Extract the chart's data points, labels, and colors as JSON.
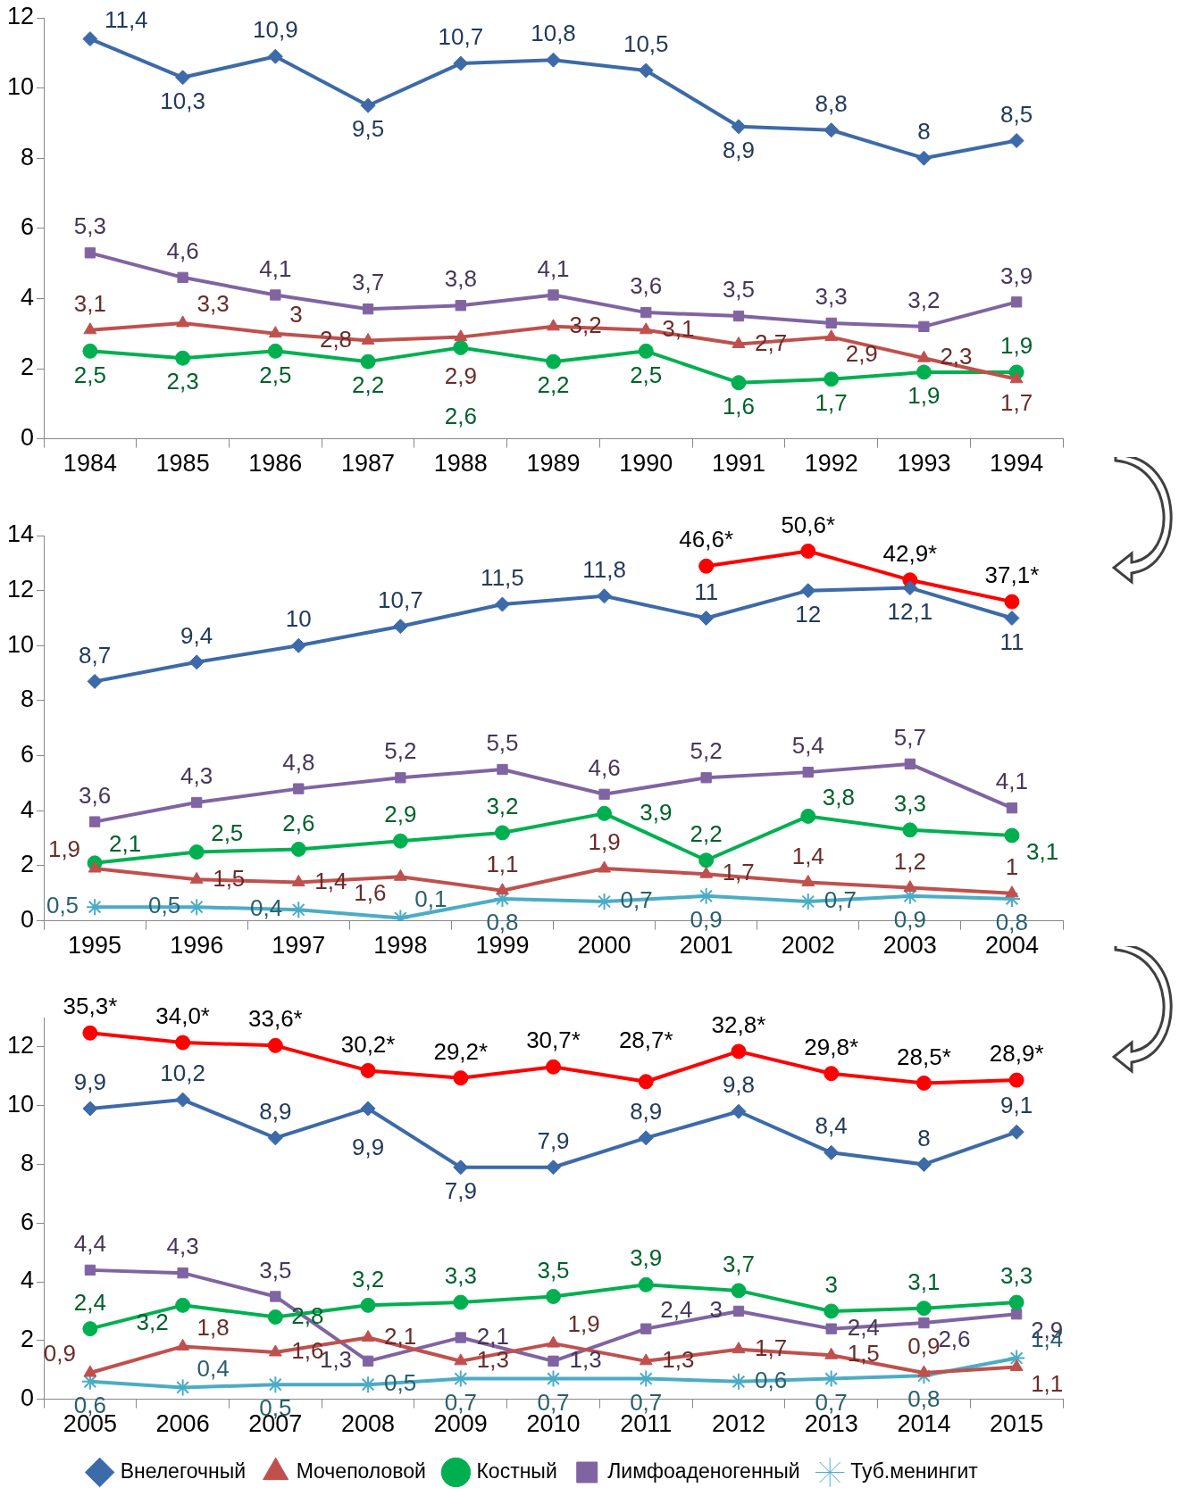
{
  "chart_data": [
    {
      "type": "line",
      "categories": [
        "1984",
        "1985",
        "1986",
        "1987",
        "1988",
        "1989",
        "1990",
        "1991",
        "1992",
        "1993",
        "1994"
      ],
      "ylim": [
        0,
        12
      ],
      "yticks": [
        0,
        2,
        4,
        6,
        8,
        10,
        12
      ],
      "grid": false,
      "series": [
        {
          "color": "#3d6aa8",
          "marker": "diamond",
          "values": [
            11.4,
            10.3,
            10.9,
            9.5,
            10.7,
            10.8,
            10.5,
            8.9,
            8.8,
            8,
            8.5
          ],
          "value_labels": [
            "11,4",
            "10,3",
            "10,9",
            "9,5",
            "10,7",
            "10,8",
            "10,5",
            "8,9",
            "8,8",
            "8",
            "8,5"
          ]
        },
        {
          "color": "#c0504d",
          "marker": "triangle",
          "values": [
            3.1,
            3.3,
            3,
            2.8,
            2.9,
            3.2,
            3.1,
            2.7,
            2.9,
            2.3,
            1.7
          ],
          "value_labels": [
            "3,1",
            "3,3",
            "3",
            "2,8",
            "2,9",
            "3,2",
            "3,1",
            "2,7",
            "2,9",
            "2,3",
            "1,7"
          ]
        },
        {
          "color": "#00b050",
          "marker": "circle",
          "values": [
            2.5,
            2.3,
            2.5,
            2.2,
            2.6,
            2.2,
            2.5,
            1.6,
            1.7,
            1.9,
            1.9
          ],
          "value_labels": [
            "2,5",
            "2,3",
            "2,5",
            "2,2",
            "2,6",
            "2,2",
            "2,5",
            "1,6",
            "1,7",
            "1,9",
            "1,9"
          ]
        },
        {
          "color": "#8064a2",
          "marker": "square",
          "values": [
            5.3,
            4.6,
            4.1,
            3.7,
            3.8,
            4.1,
            3.6,
            3.5,
            3.3,
            3.2,
            3.9
          ],
          "value_labels": [
            "5,3",
            "4,6",
            "4,1",
            "3,7",
            "3,8",
            "4,1",
            "3,6",
            "3,5",
            "3,3",
            "3,2",
            "3,9"
          ]
        }
      ]
    },
    {
      "type": "line",
      "categories": [
        "1995",
        "1996",
        "1997",
        "1998",
        "1999",
        "2000",
        "2001",
        "2002",
        "2003",
        "2004"
      ],
      "ylim": [
        0,
        14
      ],
      "yticks": [
        0,
        2,
        4,
        6,
        8,
        10,
        12,
        14
      ],
      "grid": false,
      "series": [
        {
          "color": "#3d6aa8",
          "marker": "diamond",
          "values": [
            8.7,
            9.4,
            10,
            10.7,
            11.5,
            11.8,
            11,
            12,
            12.1,
            11
          ],
          "value_labels": [
            "8,7",
            "9,4",
            "10",
            "10,7",
            "11,5",
            "11,8",
            "11",
            "12",
            "12,1",
            "11"
          ]
        },
        {
          "color": "#c0504d",
          "marker": "triangle",
          "values": [
            1.9,
            1.5,
            1.4,
            1.6,
            1.1,
            1.9,
            1.7,
            1.4,
            1.2,
            1
          ],
          "value_labels": [
            "1,9",
            "1,5",
            "1,4",
            "1,6",
            "1,1",
            "1,9",
            "1,7",
            "1,4",
            "1,2",
            "1"
          ]
        },
        {
          "color": "#00b050",
          "marker": "circle",
          "values": [
            2.1,
            2.5,
            2.6,
            2.9,
            3.2,
            3.9,
            2.2,
            3.8,
            3.3,
            3.1
          ],
          "value_labels": [
            "2,1",
            "2,5",
            "2,6",
            "2,9",
            "3,2",
            "3,9",
            "2,2",
            "3,8",
            "3,3",
            "3,1"
          ]
        },
        {
          "color": "#8064a2",
          "marker": "square",
          "values": [
            3.6,
            4.3,
            4.8,
            5.2,
            5.5,
            4.6,
            5.2,
            5.4,
            5.7,
            4.1
          ],
          "value_labels": [
            "3,6",
            "4,3",
            "4,8",
            "5,2",
            "5,5",
            "4,6",
            "5,2",
            "5,4",
            "5,7",
            "4,1"
          ]
        },
        {
          "color": "#4bacc6",
          "marker": "cross",
          "values": [
            0.5,
            0.5,
            0.4,
            0.1,
            0.8,
            0.7,
            0.9,
            0.7,
            0.9,
            0.8
          ],
          "value_labels": [
            "0,5",
            "0,5",
            "0,4",
            "0,1",
            "0,8",
            "0,7",
            "0,9",
            "0,7",
            "0,9",
            "0,8"
          ]
        },
        {
          "color": "#ff0000",
          "marker": "circle",
          "axis": "y2",
          "values": [
            null,
            null,
            null,
            null,
            null,
            null,
            46.6,
            50.6,
            42.9,
            37.1
          ],
          "value_labels": [
            null,
            null,
            null,
            null,
            null,
            null,
            "46,6*",
            "50,6*",
            "42,9*",
            "37,1*"
          ]
        }
      ]
    },
    {
      "type": "line",
      "categories": [
        "2005",
        "2006",
        "2007",
        "2008",
        "2009",
        "2010",
        "2011",
        "2012",
        "2013",
        "2014",
        "2015"
      ],
      "ylim": [
        0,
        13
      ],
      "yticks": [
        0,
        2,
        4,
        6,
        8,
        10,
        12
      ],
      "grid": false,
      "legend": "bottom",
      "series": [
        {
          "name": "Внелегочный",
          "color": "#3d6aa8",
          "marker": "diamond",
          "values": [
            9.9,
            10.2,
            8.9,
            9.9,
            7.9,
            7.9,
            8.9,
            9.8,
            8.4,
            8,
            9.1
          ],
          "value_labels": [
            "9,9",
            "10,2",
            "8,9",
            "9,9",
            "7,9",
            "7,9",
            "8,9",
            "9,8",
            "8,4",
            "8",
            "9,1"
          ]
        },
        {
          "name": "Мочеполовой",
          "color": "#c0504d",
          "marker": "triangle",
          "values": [
            0.9,
            1.8,
            1.6,
            2.1,
            1.3,
            1.9,
            1.3,
            1.7,
            1.5,
            0.9,
            1.1
          ],
          "value_labels": [
            "0,9",
            "1,8",
            "1,6",
            "2,1",
            "1,3",
            "1,9",
            "1,3",
            "1,7",
            "1,5",
            "0,9",
            "1,1"
          ]
        },
        {
          "name": "Костный",
          "color": "#00b050",
          "marker": "circle",
          "values": [
            2.4,
            3.2,
            2.8,
            3.2,
            3.3,
            3.5,
            3.9,
            3.7,
            3,
            3.1,
            3.3
          ],
          "value_labels": [
            "2,4",
            "3,2",
            "2,8",
            "3,2",
            "3,3",
            "3,5",
            "3,9",
            "3,7",
            "3",
            "3,1",
            "3,3"
          ]
        },
        {
          "name": "Лимфоаденогенный",
          "color": "#8064a2",
          "marker": "square",
          "values": [
            4.4,
            4.3,
            3.5,
            1.3,
            2.1,
            1.3,
            2.4,
            3,
            2.4,
            2.6,
            2.9
          ],
          "value_labels": [
            "4,4",
            "4,3",
            "3,5",
            "1,3",
            "2,1",
            "1,3",
            "2,4",
            "3",
            "2,4",
            "2,6",
            "2,9"
          ]
        },
        {
          "name": "Туб.менингит",
          "color": "#4bacc6",
          "marker": "cross",
          "values": [
            0.6,
            0.4,
            0.5,
            0.5,
            0.7,
            0.7,
            0.7,
            0.6,
            0.7,
            0.8,
            1.4
          ],
          "value_labels": [
            "0,6",
            "0,4",
            "0,5",
            "0,5",
            "0,7",
            "0,7",
            "0,7",
            "0,6",
            "0,7",
            "0,8",
            "1,4"
          ]
        },
        {
          "color": "#ff0000",
          "marker": "circle",
          "axis": "y2",
          "values": [
            35.3,
            34.0,
            33.6,
            30.2,
            29.2,
            30.7,
            28.7,
            32.8,
            29.8,
            28.5,
            28.9
          ],
          "value_labels": [
            "35,3*",
            "34,0*",
            "33,6*",
            "30,2*",
            "29,2*",
            "30,7*",
            "28,7*",
            "32,8*",
            "29,8*",
            "28,5*",
            "28,9*"
          ]
        }
      ]
    }
  ]
}
